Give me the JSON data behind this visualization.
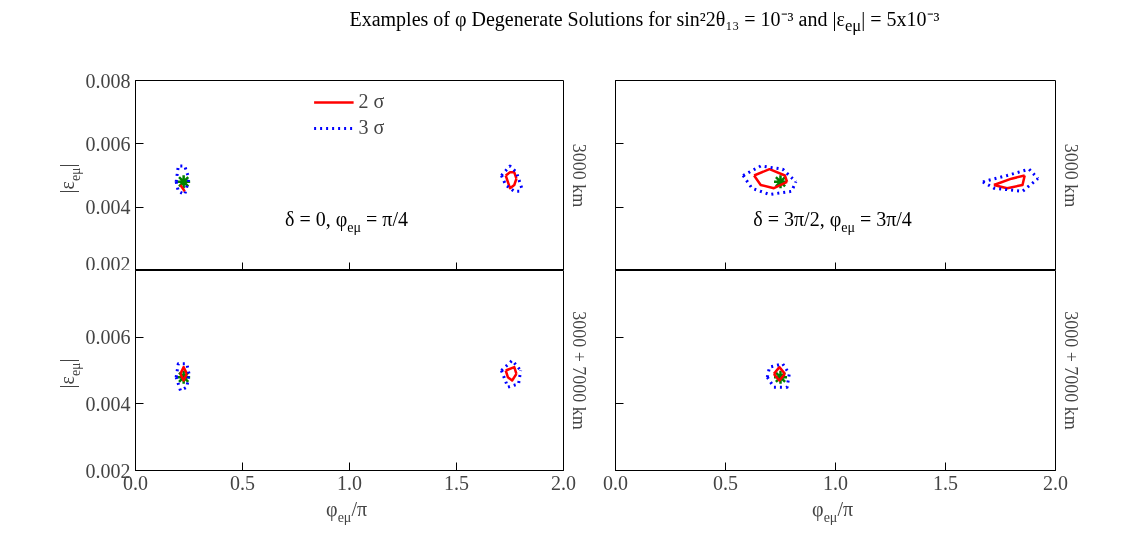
{
  "chart_data": [
    {
      "type": "line",
      "title": "Examples of φ Degenerate Solutions for sin²2θ₁₃ = 10⁻³ and |ε$_{eμ}$| = 5x10⁻³",
      "ylabel": "|ε$_{eμ}$|",
      "y2label": "3000 km",
      "annotations": [
        "δ = 0, φ$_{eμ}$ = π/4"
      ],
      "legend": "top",
      "grid": false,
      "tick_labels": "y",
      "xlim": [
        0,
        2
      ],
      "xticks": [
        0,
        0.5,
        1,
        1.5,
        2
      ],
      "ylim": [
        0.002,
        0.008
      ],
      "yticks": [
        0.002,
        0.004,
        0.006,
        0.008
      ],
      "series": [
        {
          "name": "2 σ",
          "color": "#ff0000",
          "line_style": "solid",
          "x": [
            1.73,
            1.75,
            1.77,
            1.78
          ],
          "values": [
            0.005,
            0.0051,
            0.0051,
            0.0049
          ]
        },
        {
          "color": "#ff0000",
          "line_style": "solid",
          "x": [
            1.73,
            1.74,
            1.75,
            1.77,
            1.78
          ],
          "values": [
            0.005,
            0.0048,
            0.0046,
            0.0047,
            0.0049
          ]
        },
        {
          "name": "3 σ",
          "color": "#0000ff",
          "line_style": "dotted",
          "x": [
            0.19,
            0.2,
            0.23,
            0.25
          ],
          "values": [
            0.0048,
            0.0053,
            0.0053,
            0.0049
          ]
        },
        {
          "color": "#0000ff",
          "line_style": "dotted",
          "x": [
            0.19,
            0.2,
            0.23,
            0.25
          ],
          "values": [
            0.0048,
            0.0045,
            0.0044,
            0.0049
          ]
        },
        {
          "color": "#ff0000",
          "line_style": "solid",
          "x": [
            0.21,
            0.23
          ],
          "values": [
            0.0047,
            0.0045
          ]
        },
        {
          "color": "#0000ff",
          "line_style": "dotted",
          "x": [
            1.71,
            1.75,
            1.78,
            1.81
          ],
          "values": [
            0.005,
            0.0053,
            0.0051,
            0.0045
          ]
        },
        {
          "color": "#0000ff",
          "line_style": "dotted",
          "x": [
            1.71,
            1.73,
            1.77,
            1.81
          ],
          "values": [
            0.005,
            0.0047,
            0.0045,
            0.0045
          ]
        },
        {
          "type": "scatter",
          "marker": "cross",
          "color": "#008000",
          "x": [
            0.225
          ],
          "values": [
            0.0048
          ]
        }
      ]
    },
    {
      "type": "line",
      "y2label": "3000 km",
      "annotations": [
        "δ = 3π/2, φ$_{eμ}$ = 3π/4"
      ],
      "grid": false,
      "tick_labels": false,
      "xlim": [
        0,
        2
      ],
      "xticks": [
        0,
        0.5,
        1,
        1.5,
        2
      ],
      "ylim": [
        0.002,
        0.008
      ],
      "yticks": [
        0.002,
        0.004,
        0.006,
        0.008
      ],
      "series": [
        {
          "color": "#ff0000",
          "line_style": "solid",
          "x": [
            0.63,
            0.7,
            0.77,
            0.78
          ],
          "values": [
            0.005,
            0.0052,
            0.005,
            0.0048
          ]
        },
        {
          "color": "#ff0000",
          "line_style": "solid",
          "x": [
            0.63,
            0.66,
            0.72,
            0.78
          ],
          "values": [
            0.005,
            0.0047,
            0.0046,
            0.0048
          ]
        },
        {
          "color": "#0000ff",
          "line_style": "dotted",
          "x": [
            0.58,
            0.66,
            0.76,
            0.82
          ],
          "values": [
            0.005,
            0.0053,
            0.0052,
            0.0048
          ]
        },
        {
          "color": "#0000ff",
          "line_style": "dotted",
          "x": [
            0.58,
            0.62,
            0.7,
            0.8,
            0.82
          ],
          "values": [
            0.005,
            0.0046,
            0.0044,
            0.0045,
            0.0048
          ]
        },
        {
          "color": "#ff0000",
          "line_style": "solid",
          "x": [
            1.72,
            1.8,
            1.86
          ],
          "values": [
            0.0047,
            0.0049,
            0.005
          ]
        },
        {
          "color": "#ff0000",
          "line_style": "solid",
          "x": [
            1.72,
            1.78,
            1.85,
            1.86
          ],
          "values": [
            0.0047,
            0.0046,
            0.0047,
            0.005
          ]
        },
        {
          "color": "#0000ff",
          "line_style": "dotted",
          "x": [
            1.67,
            1.78,
            1.88,
            1.92
          ],
          "values": [
            0.0048,
            0.005,
            0.0052,
            0.0049
          ]
        },
        {
          "color": "#0000ff",
          "line_style": "dotted",
          "x": [
            1.67,
            1.72,
            1.85,
            1.92
          ],
          "values": [
            0.0048,
            0.0046,
            0.0045,
            0.0049
          ]
        },
        {
          "type": "scatter",
          "marker": "cross",
          "color": "#008000",
          "x": [
            0.75
          ],
          "values": [
            0.0048
          ]
        }
      ]
    },
    {
      "type": "line",
      "xlabel": "φ$_{eμ}$/π",
      "ylabel": "|ε$_{eμ}$|",
      "y2label": "3000 + 7000 km",
      "grid": false,
      "xlim": [
        0,
        2
      ],
      "xticks": [
        {
          "value": 0,
          "label": "0.0"
        },
        {
          "value": 0.5,
          "label": "0.5"
        },
        {
          "value": 1,
          "label": "1.0"
        },
        {
          "value": 1.5,
          "label": "1.5"
        },
        {
          "value": 2,
          "label": "2.0"
        }
      ],
      "ylim": [
        0.002,
        0.008
      ],
      "yticks": [
        0.002,
        0.004,
        0.006,
        {
          "value": 0.008,
          "label": null
        }
      ],
      "series": [
        {
          "color": "#ff0000",
          "line_style": "solid",
          "x": [
            0.21,
            0.225,
            0.24
          ],
          "values": [
            0.0049,
            0.0051,
            0.0049
          ]
        },
        {
          "color": "#ff0000",
          "line_style": "solid",
          "x": [
            0.21,
            0.225,
            0.24
          ],
          "values": [
            0.0049,
            0.0047,
            0.0049
          ]
        },
        {
          "color": "#0000ff",
          "line_style": "dotted",
          "x": [
            0.19,
            0.2,
            0.24,
            0.25
          ],
          "values": [
            0.0048,
            0.0052,
            0.0052,
            0.0049
          ]
        },
        {
          "color": "#0000ff",
          "line_style": "dotted",
          "x": [
            0.19,
            0.21,
            0.24,
            0.25
          ],
          "values": [
            0.0048,
            0.0044,
            0.0045,
            0.0049
          ]
        },
        {
          "color": "#ff0000",
          "line_style": "solid",
          "x": [
            1.73,
            1.77,
            1.78
          ],
          "values": [
            0.005,
            0.0051,
            0.0049
          ]
        },
        {
          "color": "#ff0000",
          "line_style": "solid",
          "x": [
            1.73,
            1.74,
            1.76,
            1.78
          ],
          "values": [
            0.005,
            0.0048,
            0.0047,
            0.0049
          ]
        },
        {
          "color": "#0000ff",
          "line_style": "dotted",
          "x": [
            1.71,
            1.76,
            1.8
          ],
          "values": [
            0.005,
            0.0053,
            0.005
          ]
        },
        {
          "color": "#0000ff",
          "line_style": "dotted",
          "x": [
            1.71,
            1.74,
            1.79,
            1.8
          ],
          "values": [
            0.005,
            0.0045,
            0.0046,
            0.005
          ]
        },
        {
          "type": "scatter",
          "marker": "cross",
          "color": "#008000",
          "x": [
            0.225
          ],
          "values": [
            0.0048
          ]
        }
      ]
    },
    {
      "type": "line",
      "xlabel": "φ$_{eμ}$/π",
      "y2label": "3000 + 7000 km",
      "grid": false,
      "tick_labels": "x",
      "xlim": [
        0,
        2
      ],
      "xticks": [
        {
          "value": 0,
          "label": "0.0"
        },
        {
          "value": 0.5,
          "label": "0.5"
        },
        {
          "value": 1,
          "label": "1.0"
        },
        {
          "value": 1.5,
          "label": "1.5"
        },
        {
          "value": 2,
          "label": "2.0"
        }
      ],
      "ylim": [
        0.002,
        0.008
      ],
      "yticks": [
        0.002,
        0.004,
        0.006,
        0.008
      ],
      "series": [
        {
          "color": "#ff0000",
          "line_style": "solid",
          "x": [
            0.72,
            0.745,
            0.77
          ],
          "values": [
            0.0049,
            0.0051,
            0.0049
          ]
        },
        {
          "color": "#ff0000",
          "line_style": "solid",
          "x": [
            0.72,
            0.745,
            0.77
          ],
          "values": [
            0.0049,
            0.0047,
            0.0049
          ]
        },
        {
          "color": "#0000ff",
          "line_style": "dotted",
          "x": [
            0.69,
            0.7,
            0.76,
            0.79
          ],
          "values": [
            0.0048,
            0.0051,
            0.0052,
            0.0049
          ]
        },
        {
          "color": "#0000ff",
          "line_style": "dotted",
          "x": [
            0.69,
            0.72,
            0.78,
            0.79
          ],
          "values": [
            0.0048,
            0.0045,
            0.0045,
            0.0049
          ]
        },
        {
          "type": "scatter",
          "marker": "cross",
          "color": "#008000",
          "x": [
            0.75
          ],
          "values": [
            0.0048
          ]
        }
      ]
    }
  ]
}
